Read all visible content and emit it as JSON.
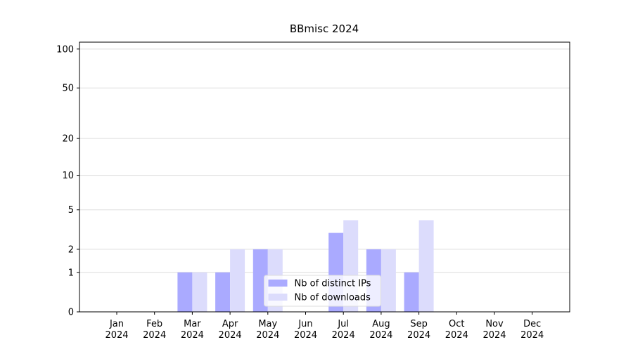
{
  "chart_data": {
    "type": "bar",
    "title": "BBmisc 2024",
    "categories": [
      "Jan\n2024",
      "Feb\n2024",
      "Mar\n2024",
      "Apr\n2024",
      "May\n2024",
      "Jun\n2024",
      "Jul\n2024",
      "Aug\n2024",
      "Sep\n2024",
      "Oct\n2024",
      "Nov\n2024",
      "Dec\n2024"
    ],
    "series": [
      {
        "name": "Nb of distinct IPs",
        "color": "#aaaaff",
        "values": [
          0,
          0,
          1,
          1,
          2,
          0,
          3,
          2,
          1,
          0,
          0,
          0
        ]
      },
      {
        "name": "Nb of downloads",
        "color": "#dcdcfc",
        "values": [
          0,
          0,
          1,
          2,
          2,
          0,
          4,
          2,
          4,
          0,
          0,
          0
        ]
      }
    ],
    "yscale": "log1p",
    "ylim": [
      0,
      113
    ],
    "yticks": [
      0,
      1,
      2,
      5,
      10,
      20,
      50,
      100
    ],
    "grid": true,
    "legend": "lower center"
  }
}
